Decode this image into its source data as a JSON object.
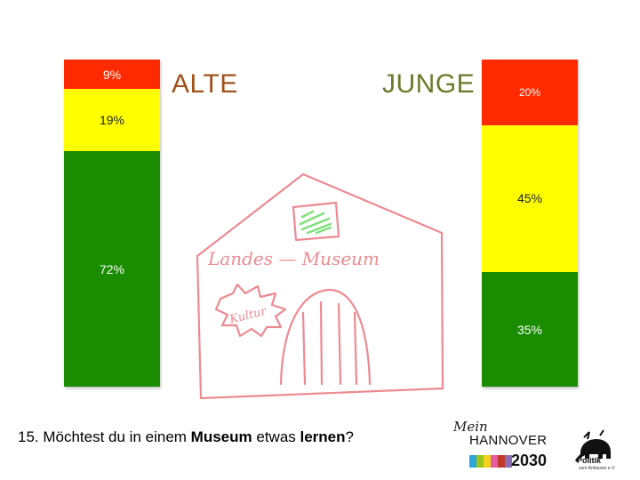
{
  "chart_data": {
    "type": "bar",
    "stacked": true,
    "categories": [
      "ALTE",
      "JUNGE"
    ],
    "segments": {
      "ALTE": [
        {
          "value": 72,
          "label": "72%",
          "color": "#1a8c00"
        },
        {
          "value": 19,
          "label": "19%",
          "color": "#ffff00"
        },
        {
          "value": 9,
          "label": "9%",
          "color": "#ff2a00"
        }
      ],
      "JUNGE": [
        {
          "value": 35,
          "label": "35%",
          "color": "#1a8c00"
        },
        {
          "value": 45,
          "label": "45%",
          "color": "#ffff00"
        },
        {
          "value": 20,
          "label": "20%",
          "color": "#ff2a00"
        }
      ]
    },
    "ylim": [
      0,
      100
    ],
    "grid": false,
    "legend": "none"
  },
  "labels": {
    "alte": "ALTE",
    "junge": "JUNGE",
    "alte_color": "#a0521a",
    "junge_color": "#6b7a2a"
  },
  "drawing": {
    "sign_text": "Landes — Museum",
    "badge_text": "Kultur",
    "stroke_color": "#ec8a92"
  },
  "question": {
    "prefix": "15. Möchtest du in einem ",
    "bold1": "Museum",
    "middle": " etwas ",
    "bold2": "lernen",
    "suffix": "?"
  },
  "logo": {
    "mein": "Mein",
    "hannover": "HANNOVER",
    "year": "2030",
    "stripe_colors": [
      "#2aa6d8",
      "#9cc31a",
      "#f2d11a",
      "#e85aa0",
      "#c0392b",
      "#8e6db5"
    ],
    "politik": "Politik",
    "politik_sub": "zum Anfassen e.V."
  }
}
